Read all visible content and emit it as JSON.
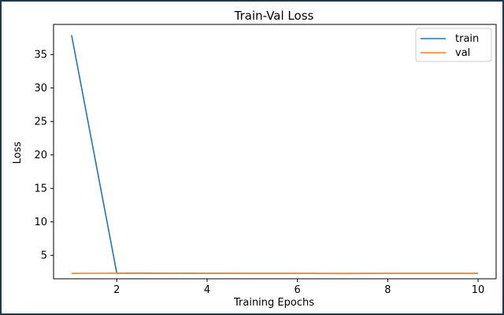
{
  "chart_data": {
    "type": "line",
    "title": "Train-Val Loss",
    "xlabel": "Training Epochs",
    "ylabel": "Loss",
    "x": [
      1,
      2,
      3,
      4,
      5,
      6,
      7,
      8,
      9,
      10
    ],
    "xlim": [
      0.6,
      10.4
    ],
    "ylim": [
      1.5,
      39.5
    ],
    "xticks": [
      2,
      4,
      6,
      8,
      10
    ],
    "yticks": [
      5,
      10,
      15,
      20,
      25,
      30,
      35
    ],
    "grid": false,
    "legend_position": "top-right",
    "series": [
      {
        "name": "train",
        "color": "#1f77b4",
        "values": [
          37.9,
          2.35,
          2.32,
          2.31,
          2.3,
          2.3,
          2.29,
          2.3,
          2.3,
          2.3
        ]
      },
      {
        "name": "val",
        "color": "#ff7f0e",
        "values": [
          2.3,
          2.33,
          2.31,
          2.3,
          2.3,
          2.3,
          2.3,
          2.3,
          2.3,
          2.3
        ]
      }
    ]
  }
}
